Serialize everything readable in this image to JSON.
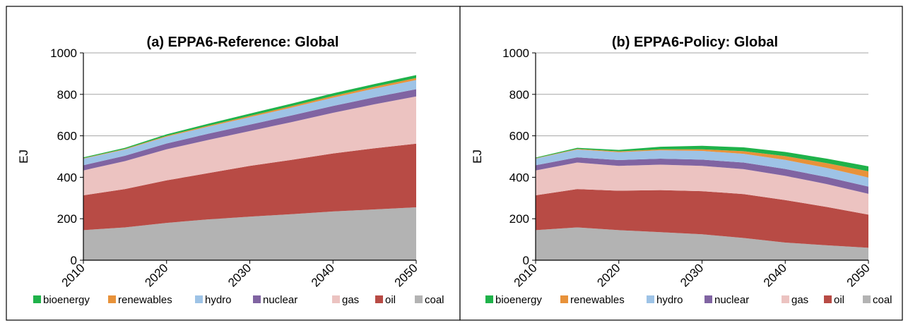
{
  "colors": {
    "coal": "#b3b3b3",
    "oil": "#b84b45",
    "gas": "#ecc3c1",
    "nuclear": "#8064a2",
    "hydro": "#9ec3e6",
    "renewables": "#e8923a",
    "bioenergy": "#1fb24a",
    "grid": "#a6a6a6",
    "axis": "#000000",
    "border": "#000000"
  },
  "chart_data": [
    {
      "type": "area",
      "stacked": true,
      "title": "(a) EPPA6-Reference: Global",
      "ylabel": "EJ",
      "xlabel": "",
      "ylim": [
        0,
        1000
      ],
      "yticks": [
        0,
        200,
        400,
        600,
        800,
        1000
      ],
      "xticks": [
        2010,
        2020,
        2030,
        2040,
        2050
      ],
      "x": [
        2010,
        2015,
        2020,
        2025,
        2030,
        2035,
        2040,
        2045,
        2050
      ],
      "grid": true,
      "legend": "bottom",
      "legend_entries": [
        "bioenergy",
        "renewables",
        "hydro",
        "nuclear",
        "gas",
        "oil",
        "coal"
      ],
      "series": [
        {
          "name": "coal",
          "values": [
            145,
            158,
            180,
            197,
            210,
            222,
            235,
            245,
            255
          ]
        },
        {
          "name": "oil",
          "values": [
            168,
            185,
            205,
            223,
            245,
            262,
            280,
            295,
            307
          ]
        },
        {
          "name": "gas",
          "values": [
            120,
            135,
            150,
            160,
            168,
            182,
            196,
            212,
            228
          ]
        },
        {
          "name": "nuclear",
          "values": [
            25,
            26,
            28,
            30,
            31,
            32,
            33,
            34,
            35
          ]
        },
        {
          "name": "hydro",
          "values": [
            32,
            30,
            33,
            34,
            36,
            38,
            40,
            42,
            44
          ]
        },
        {
          "name": "renewables",
          "values": [
            2,
            3,
            4,
            5,
            6,
            7,
            8,
            9,
            10
          ]
        },
        {
          "name": "bioenergy",
          "values": [
            4,
            5,
            7,
            9,
            11,
            12,
            13,
            13,
            14
          ]
        }
      ]
    },
    {
      "type": "area",
      "stacked": true,
      "title": "(b) EPPA6-Policy: Global",
      "ylabel": "EJ",
      "xlabel": "",
      "ylim": [
        0,
        1000
      ],
      "yticks": [
        0,
        200,
        400,
        600,
        800,
        1000
      ],
      "xticks": [
        2010,
        2020,
        2030,
        2040,
        2050
      ],
      "x": [
        2010,
        2015,
        2020,
        2025,
        2030,
        2035,
        2040,
        2045,
        2050
      ],
      "grid": true,
      "legend": "bottom",
      "legend_entries": [
        "bioenergy",
        "renewables",
        "hydro",
        "nuclear",
        "gas",
        "oil",
        "coal"
      ],
      "series": [
        {
          "name": "coal",
          "values": [
            145,
            158,
            145,
            135,
            125,
            107,
            85,
            72,
            60
          ]
        },
        {
          "name": "oil",
          "values": [
            168,
            185,
            190,
            203,
            208,
            212,
            205,
            185,
            160
          ]
        },
        {
          "name": "gas",
          "values": [
            120,
            128,
            120,
            123,
            122,
            120,
            117,
            110,
            100
          ]
        },
        {
          "name": "nuclear",
          "values": [
            25,
            25,
            28,
            29,
            30,
            32,
            33,
            34,
            35
          ]
        },
        {
          "name": "hydro",
          "values": [
            32,
            38,
            38,
            40,
            42,
            42,
            44,
            44,
            44
          ]
        },
        {
          "name": "renewables",
          "values": [
            2,
            3,
            4,
            5,
            8,
            13,
            18,
            23,
            30
          ]
        },
        {
          "name": "bioenergy",
          "values": [
            3,
            5,
            7,
            12,
            17,
            18,
            20,
            22,
            24
          ]
        }
      ]
    }
  ]
}
